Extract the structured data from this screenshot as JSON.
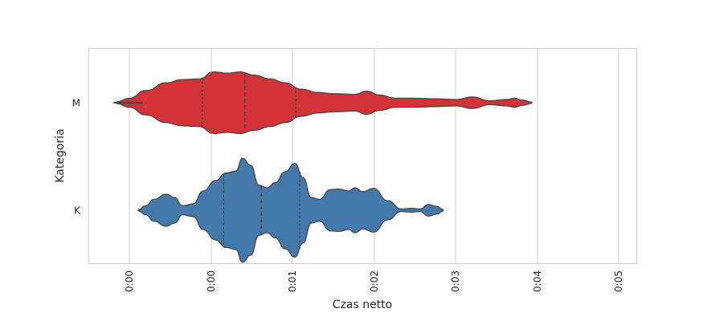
{
  "chart_data": {
    "type": "violin",
    "orientation": "horizontal",
    "xlabel": "Czas netto",
    "ylabel": "Kategoria",
    "x_tick_labels": [
      "0:00",
      "0:00",
      "0:01",
      "0:02",
      "0:03",
      "0:04",
      "0:05"
    ],
    "grid": true,
    "inner": "quartile",
    "series": [
      {
        "name": "M",
        "color": "#D33336",
        "quartiles": [
          0.0089,
          0.0141,
          0.0203
        ],
        "range": [
          -0.0019,
          0.0491
        ],
        "density": [
          [
            -0.0019,
            0.006
          ],
          [
            0.0,
            0.02
          ],
          [
            0.001,
            0.012
          ],
          [
            0.0015,
            0.012
          ],
          [
            -0.001,
            0.012
          ],
          [
            -0.0015,
            0.03
          ],
          [
            0.0,
            0.14
          ],
          [
            0.002,
            0.38
          ],
          [
            0.0045,
            0.62
          ],
          [
            0.0065,
            0.72
          ],
          [
            0.0085,
            0.74
          ],
          [
            0.0103,
            0.96
          ],
          [
            0.012,
            0.92
          ],
          [
            0.0135,
            0.96
          ],
          [
            0.0152,
            0.86
          ],
          [
            0.0172,
            0.74
          ],
          [
            0.019,
            0.62
          ],
          [
            0.021,
            0.42
          ],
          [
            0.023,
            0.32
          ],
          [
            0.025,
            0.28
          ],
          [
            0.0275,
            0.26
          ],
          [
            0.029,
            0.36
          ],
          [
            0.0305,
            0.24
          ],
          [
            0.0325,
            0.14
          ],
          [
            0.0345,
            0.14
          ],
          [
            0.0375,
            0.12
          ],
          [
            0.04,
            0.1
          ],
          [
            0.0418,
            0.18
          ],
          [
            0.044,
            0.06
          ],
          [
            0.046,
            0.1
          ],
          [
            0.047,
            0.14
          ],
          [
            0.048,
            0.08
          ],
          [
            0.0491,
            0.02
          ]
        ]
      },
      {
        "name": "K",
        "color": "#4479AC",
        "quartiles": [
          0.0115,
          0.0161,
          0.0208
        ],
        "range": [
          0.0011,
          0.0383
        ],
        "density": [
          [
            0.0011,
            0.02
          ],
          [
            0.002,
            0.14
          ],
          [
            0.003,
            0.34
          ],
          [
            0.0045,
            0.5
          ],
          [
            0.0055,
            0.4
          ],
          [
            0.0065,
            0.14
          ],
          [
            0.0078,
            0.2
          ],
          [
            0.009,
            0.6
          ],
          [
            0.0105,
            0.92
          ],
          [
            0.0118,
            1.16
          ],
          [
            0.013,
            1.22
          ],
          [
            0.0138,
            1.62
          ],
          [
            0.0148,
            1.4
          ],
          [
            0.0158,
            0.78
          ],
          [
            0.0168,
            0.7
          ],
          [
            0.0178,
            0.86
          ],
          [
            0.019,
            1.2
          ],
          [
            0.0202,
            1.46
          ],
          [
            0.0212,
            1.02
          ],
          [
            0.0222,
            0.4
          ],
          [
            0.0232,
            0.34
          ],
          [
            0.0245,
            0.64
          ],
          [
            0.0255,
            0.66
          ],
          [
            0.0268,
            0.6
          ],
          [
            0.0275,
            0.7
          ],
          [
            0.0285,
            0.58
          ],
          [
            0.0298,
            0.68
          ],
          [
            0.0315,
            0.3
          ],
          [
            0.0332,
            0.04
          ],
          [
            0.0345,
            0.06
          ],
          [
            0.0355,
            0.04
          ],
          [
            0.0365,
            0.18
          ],
          [
            0.0375,
            0.12
          ],
          [
            0.0383,
            0.02
          ]
        ]
      }
    ]
  }
}
